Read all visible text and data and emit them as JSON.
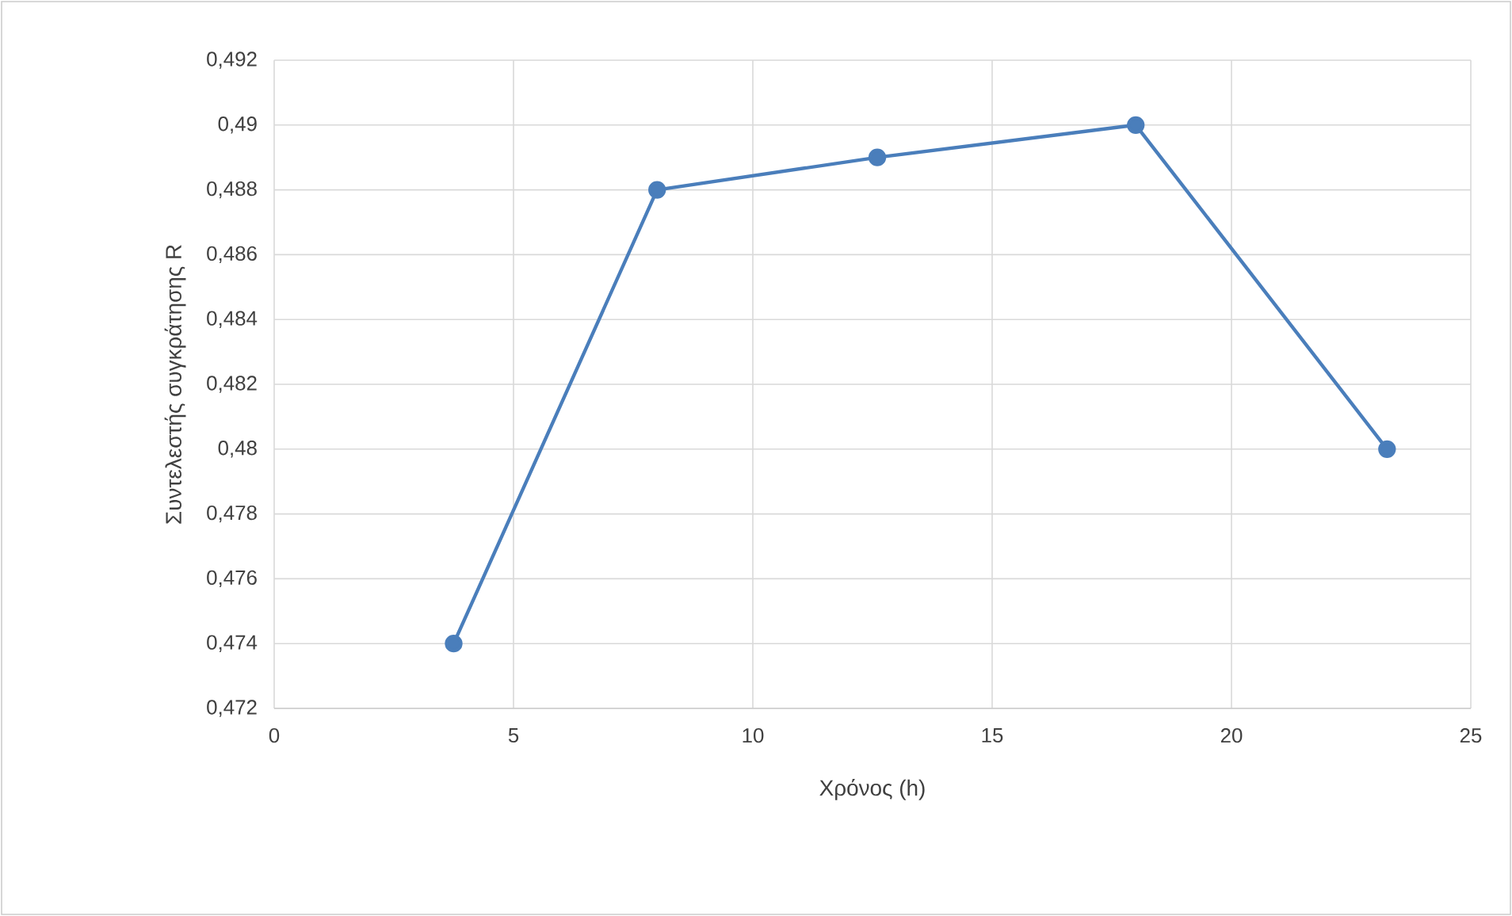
{
  "chart_data": {
    "type": "line",
    "xlabel": "Χρόνος (h)",
    "ylabel": "Συντελεστής συγκράτησης R",
    "x": [
      3.75,
      8,
      12.6,
      18,
      23.25
    ],
    "series": [
      {
        "color": "#4a7ebb",
        "values": [
          0.474,
          0.488,
          0.489,
          0.49,
          0.48
        ]
      }
    ],
    "xlim": [
      0,
      25
    ],
    "xticks": [
      0,
      5,
      10,
      15,
      20,
      25
    ],
    "ylim": [
      0.472,
      0.492
    ],
    "yticks": [
      {
        "value": 0.472,
        "label": "0,472"
      },
      {
        "value": 0.474,
        "label": "0,474"
      },
      {
        "value": 0.476,
        "label": "0,476"
      },
      {
        "value": 0.478,
        "label": "0,478"
      },
      {
        "value": 0.48,
        "label": "0,48"
      },
      {
        "value": 0.482,
        "label": "0,482"
      },
      {
        "value": 0.484,
        "label": "0,484"
      },
      {
        "value": 0.486,
        "label": "0,486"
      },
      {
        "value": 0.488,
        "label": "0,488"
      },
      {
        "value": 0.49,
        "label": "0,49"
      },
      {
        "value": 0.492,
        "label": "0,492"
      }
    ],
    "grid": true,
    "marker": "circle",
    "line_style": "solid"
  }
}
